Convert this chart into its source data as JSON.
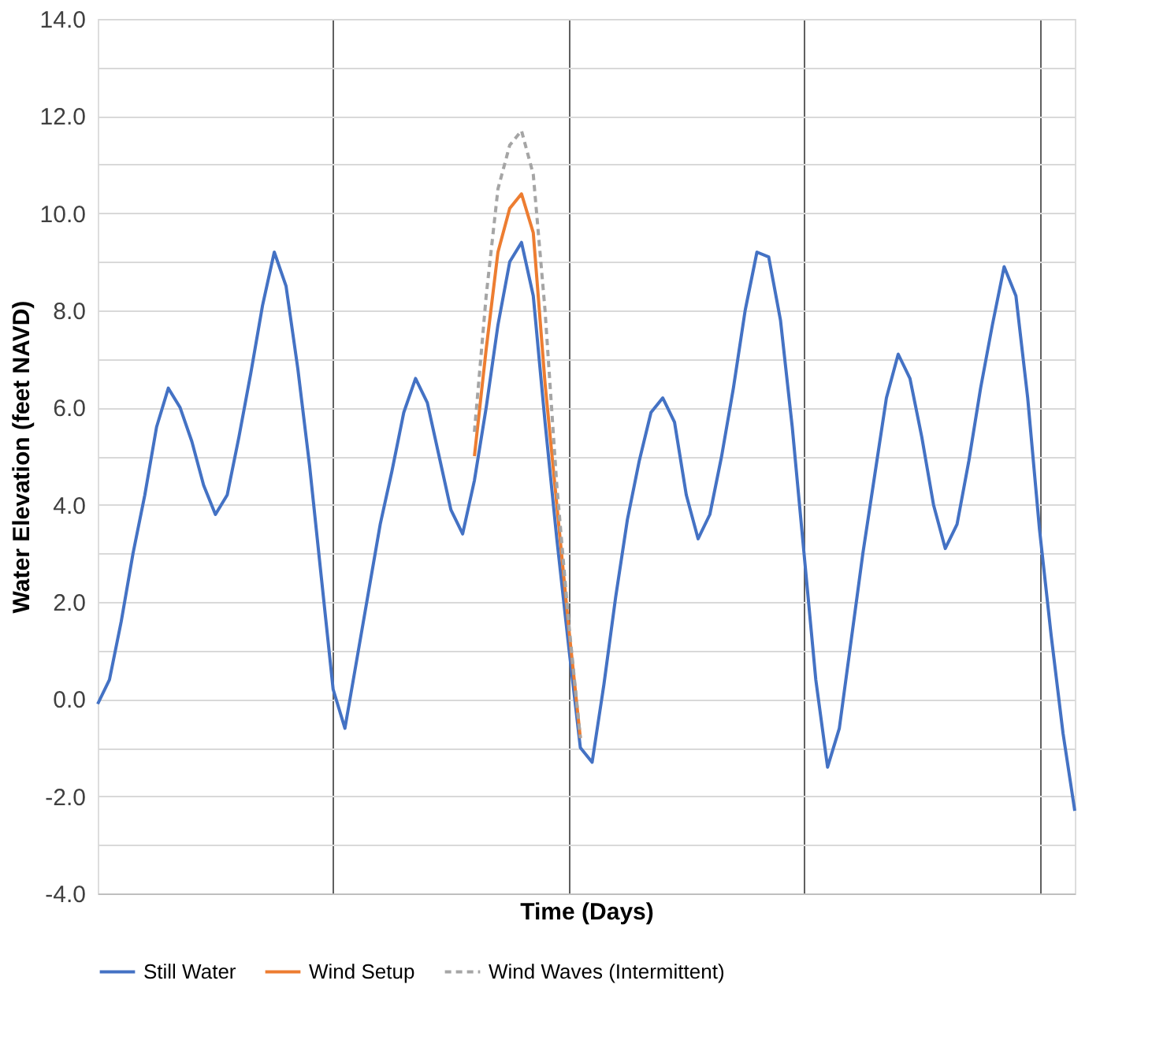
{
  "chart_data": {
    "type": "line",
    "xlabel": "Time (Days)",
    "ylabel": "Water Elevation (feet NAVD)",
    "categories": [
      null,
      null,
      null,
      null,
      null,
      null,
      null,
      null,
      null,
      null,
      null,
      null,
      null,
      null,
      null,
      null,
      null,
      null,
      null,
      null,
      null,
      null,
      null,
      null,
      null,
      null,
      null,
      null,
      null,
      null,
      null,
      null,
      null,
      null,
      null,
      null,
      null,
      null,
      null,
      null,
      null,
      null,
      null,
      null,
      null,
      null,
      null,
      null,
      null,
      null,
      null,
      null,
      null,
      null,
      null,
      null,
      null,
      null,
      null,
      null,
      null,
      null,
      null,
      null,
      null,
      null,
      null,
      null,
      null,
      null,
      null,
      null,
      null,
      null,
      null,
      null,
      null,
      null,
      null,
      null,
      null,
      null,
      null,
      null
    ],
    "ylim": [
      -4,
      14
    ],
    "yticks": [
      {
        "value": -4,
        "label": "-4.0"
      },
      {
        "value": -3,
        "label": null
      },
      {
        "value": -2,
        "label": "-2.0"
      },
      {
        "value": -1,
        "label": null
      },
      {
        "value": 0,
        "label": "0.0"
      },
      {
        "value": 1,
        "label": null
      },
      {
        "value": 2,
        "label": "2.0"
      },
      {
        "value": 3,
        "label": null
      },
      {
        "value": 4,
        "label": "4.0"
      },
      {
        "value": 5,
        "label": null
      },
      {
        "value": 6,
        "label": "6.0"
      },
      {
        "value": 7,
        "label": null
      },
      {
        "value": 8,
        "label": "8.0"
      },
      {
        "value": 9,
        "label": null
      },
      {
        "value": 10,
        "label": "10.0"
      },
      {
        "value": 11,
        "label": null
      },
      {
        "value": 12,
        "label": "12.0"
      },
      {
        "value": 13,
        "label": null
      },
      {
        "value": 14,
        "label": "14.0"
      }
    ],
    "tick_labels": "y",
    "grid": true,
    "legend": "bottom",
    "marker": "none",
    "series": [
      {
        "name": "Still Water",
        "color": "#4472c4",
        "line_style": "solid",
        "values": [
          -0.1,
          0.4,
          1.6,
          3.0,
          4.2,
          5.6,
          6.4,
          6.0,
          5.3,
          4.4,
          3.8,
          4.2,
          5.4,
          6.7,
          8.1,
          9.2,
          8.5,
          6.8,
          4.8,
          2.5,
          0.2,
          -0.6,
          0.8,
          2.2,
          3.6,
          4.7,
          5.9,
          6.6,
          6.1,
          5.0,
          3.9,
          3.4,
          4.5,
          6.0,
          7.7,
          9.0,
          9.4,
          8.3,
          5.7,
          3.3,
          1.1,
          -1.0,
          -1.3,
          0.3,
          2.1,
          3.7,
          4.9,
          5.9,
          6.2,
          5.7,
          4.2,
          3.3,
          3.8,
          5.0,
          6.4,
          8.0,
          9.2,
          9.1,
          7.8,
          5.6,
          3.0,
          0.4,
          -1.4,
          -0.6,
          1.2,
          3.0,
          4.6,
          6.2,
          7.1,
          6.6,
          5.4,
          4.0,
          3.1,
          3.6,
          4.9,
          6.4,
          7.7,
          8.9,
          8.3,
          6.2,
          3.5,
          1.3,
          -0.7,
          -2.3
        ]
      },
      {
        "name": "Wind Setup",
        "color": "#ed7d31",
        "line_style": "solid",
        "values": [
          null,
          null,
          null,
          null,
          null,
          null,
          null,
          null,
          null,
          null,
          null,
          null,
          null,
          null,
          null,
          null,
          null,
          null,
          null,
          null,
          null,
          null,
          null,
          null,
          null,
          null,
          null,
          null,
          null,
          null,
          null,
          null,
          5.0,
          7.2,
          9.2,
          10.1,
          10.4,
          9.6,
          6.5,
          4.0,
          1.5,
          -0.8,
          null,
          null,
          null,
          null,
          null,
          null,
          null,
          null,
          null,
          null,
          null,
          null,
          null,
          null,
          null,
          null,
          null,
          null,
          null,
          null,
          null,
          null,
          null,
          null,
          null,
          null,
          null,
          null,
          null,
          null,
          null,
          null,
          null,
          null,
          null,
          null,
          null,
          null,
          null,
          null,
          null,
          null
        ]
      },
      {
        "name": "Wind Waves (Intermittent)",
        "color": "#a5a5a5",
        "line_style": "dashed",
        "values": [
          null,
          null,
          null,
          null,
          null,
          null,
          null,
          null,
          null,
          null,
          null,
          null,
          null,
          null,
          null,
          null,
          null,
          null,
          null,
          null,
          null,
          null,
          null,
          null,
          null,
          null,
          null,
          null,
          null,
          null,
          null,
          null,
          5.5,
          8.3,
          10.5,
          11.4,
          11.7,
          10.8,
          8.0,
          4.4,
          1.6,
          -0.8,
          null,
          null,
          null,
          null,
          null,
          null,
          null,
          null,
          null,
          null,
          null,
          null,
          null,
          null,
          null,
          null,
          null,
          null,
          null,
          null,
          null,
          null,
          null,
          null,
          null,
          null,
          null,
          null,
          null,
          null,
          null,
          null,
          null,
          null,
          null,
          null,
          null,
          null,
          null,
          null,
          null,
          null
        ]
      }
    ]
  }
}
